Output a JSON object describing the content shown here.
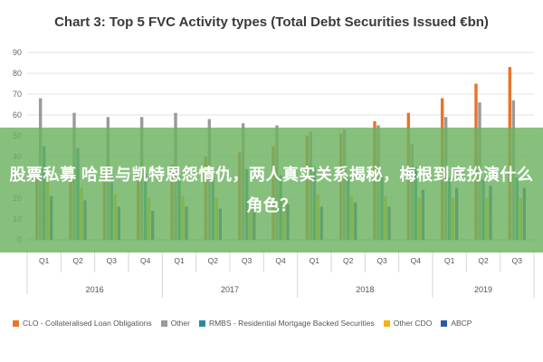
{
  "chart_data": {
    "type": "bar",
    "title": "Chart 3: Top 5 FVC Activity types (Total Debt Securities Issued €bn)",
    "ylim": [
      0,
      90
    ],
    "yticks": [
      0,
      10,
      20,
      30,
      40,
      50,
      60,
      70,
      80,
      90
    ],
    "categories": [
      "Q1",
      "Q2",
      "Q3",
      "Q4",
      "Q1",
      "Q2",
      "Q3",
      "Q4",
      "Q1",
      "Q2",
      "Q3",
      "Q4",
      "Q1",
      "Q2",
      "Q3"
    ],
    "year_groups": [
      {
        "label": "2016",
        "count": 4
      },
      {
        "label": "2017",
        "count": 4
      },
      {
        "label": "2018",
        "count": 4
      },
      {
        "label": "2019",
        "count": 3
      }
    ],
    "grid": true,
    "legend_position": "bottom",
    "series": [
      {
        "name": "CLO - Collateralised Loan Obligations",
        "color": "#e8742a",
        "values": [
          30,
          32,
          33,
          35,
          36,
          40,
          42,
          45,
          50,
          51,
          57,
          61,
          68,
          75,
          83
        ]
      },
      {
        "name": "Other",
        "color": "#9a9a9a",
        "values": [
          68,
          61,
          59,
          59,
          61,
          58,
          56,
          55,
          52,
          53,
          55,
          46,
          59,
          66,
          67
        ]
      },
      {
        "name": "RMBS - Residential Mortgage Backed Securities",
        "color": "#2a8a9c",
        "values": [
          45,
          44,
          34,
          32,
          31,
          30,
          34,
          31,
          35,
          30,
          30,
          35,
          30,
          29,
          30
        ]
      },
      {
        "name": "Other CDO",
        "color": "#f2b415",
        "values": [
          28,
          25,
          22,
          20,
          21,
          20,
          20,
          19,
          22,
          21,
          21,
          20,
          20,
          20,
          20
        ]
      },
      {
        "name": "ABCP",
        "color": "#2a5aa8",
        "values": [
          21,
          19,
          16,
          14,
          16,
          15,
          18,
          17,
          16,
          18,
          16,
          24,
          25,
          26,
          25
        ]
      }
    ]
  },
  "overlay": {
    "text": "股票私募 哈里与凯特恩怨情仇，两人真实关系揭秘，梅根到底扮演什么角色？"
  }
}
